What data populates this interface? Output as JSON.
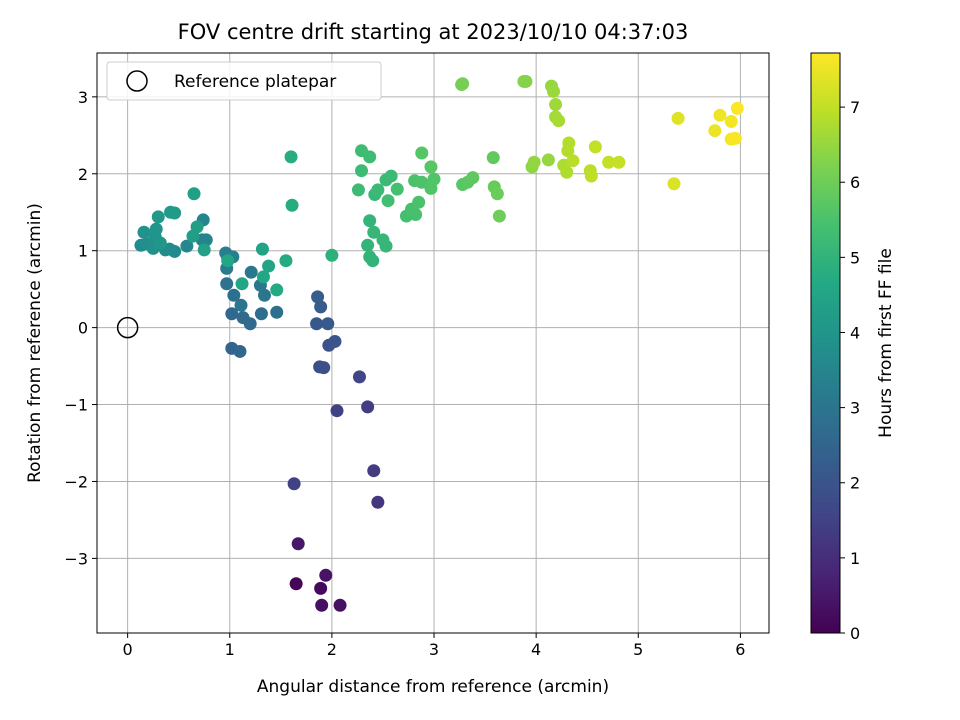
{
  "chart_data": {
    "type": "scatter",
    "title": "FOV centre drift starting at 2023/10/10 04:37:03",
    "xlabel": "Angular distance from reference (arcmin)",
    "ylabel": "Rotation from reference (arcmin)",
    "xlim": [
      -0.3,
      6.28
    ],
    "ylim": [
      -3.97,
      3.57
    ],
    "xticks": [
      0,
      1,
      2,
      3,
      4,
      5,
      6
    ],
    "yticks": [
      -3,
      -2,
      -1,
      0,
      1,
      2,
      3
    ],
    "xtick_labels": [
      "0",
      "1",
      "2",
      "3",
      "4",
      "5",
      "6"
    ],
    "ytick_labels": [
      "−3",
      "−2",
      "−1",
      "0",
      "1",
      "2",
      "3"
    ],
    "grid": true,
    "legend": {
      "placement": "top-left",
      "entries": [
        "Reference platepar"
      ]
    },
    "reference_point": {
      "x": 0,
      "y": 0
    },
    "colorbar": {
      "label": "Hours from first FF file",
      "range": [
        0,
        7.72
      ],
      "ticks": [
        0,
        1,
        2,
        3,
        4,
        5,
        6,
        7
      ],
      "tick_labels": [
        "0",
        "1",
        "2",
        "3",
        "4",
        "5",
        "6",
        "7"
      ],
      "colormap": "viridis"
    },
    "points": [
      {
        "x": 1.65,
        "y": -3.33,
        "h": 0.1
      },
      {
        "x": 1.89,
        "y": -3.39,
        "h": 0.2
      },
      {
        "x": 1.9,
        "y": -3.61,
        "h": 0.3
      },
      {
        "x": 2.08,
        "y": -3.61,
        "h": 0.35
      },
      {
        "x": 1.94,
        "y": -3.22,
        "h": 0.4
      },
      {
        "x": 1.67,
        "y": -2.81,
        "h": 0.5
      },
      {
        "x": 2.45,
        "y": -2.27,
        "h": 1.2
      },
      {
        "x": 2.41,
        "y": -1.86,
        "h": 1.35
      },
      {
        "x": 1.63,
        "y": -2.03,
        "h": 1.5
      },
      {
        "x": 2.35,
        "y": -1.03,
        "h": 1.4
      },
      {
        "x": 2.05,
        "y": -1.08,
        "h": 1.5
      },
      {
        "x": 2.27,
        "y": -0.64,
        "h": 1.6
      },
      {
        "x": 1.88,
        "y": -0.51,
        "h": 1.8
      },
      {
        "x": 1.92,
        "y": -0.52,
        "h": 1.85
      },
      {
        "x": 1.97,
        "y": -0.23,
        "h": 1.95
      },
      {
        "x": 2.03,
        "y": -0.18,
        "h": 2.0
      },
      {
        "x": 1.85,
        "y": 0.05,
        "h": 2.1
      },
      {
        "x": 1.96,
        "y": 0.05,
        "h": 2.15
      },
      {
        "x": 1.89,
        "y": 0.27,
        "h": 2.2
      },
      {
        "x": 1.86,
        "y": 0.4,
        "h": 2.25
      },
      {
        "x": 1.02,
        "y": -0.27,
        "h": 2.5
      },
      {
        "x": 1.1,
        "y": -0.31,
        "h": 2.55
      },
      {
        "x": 1.02,
        "y": 0.18,
        "h": 2.6
      },
      {
        "x": 1.13,
        "y": 0.13,
        "h": 2.65
      },
      {
        "x": 1.2,
        "y": 0.05,
        "h": 2.7
      },
      {
        "x": 1.31,
        "y": 0.18,
        "h": 2.75
      },
      {
        "x": 1.46,
        "y": 0.2,
        "h": 2.8
      },
      {
        "x": 1.04,
        "y": 0.42,
        "h": 2.85
      },
      {
        "x": 0.97,
        "y": 0.57,
        "h": 2.9
      },
      {
        "x": 1.11,
        "y": 0.29,
        "h": 3.0
      },
      {
        "x": 1.34,
        "y": 0.42,
        "h": 3.0
      },
      {
        "x": 1.3,
        "y": 0.55,
        "h": 3.05
      },
      {
        "x": 1.21,
        "y": 0.72,
        "h": 3.1
      },
      {
        "x": 0.97,
        "y": 0.77,
        "h": 3.2
      },
      {
        "x": 0.96,
        "y": 0.97,
        "h": 3.25
      },
      {
        "x": 1.03,
        "y": 0.92,
        "h": 3.3
      },
      {
        "x": 0.98,
        "y": 0.9,
        "h": 3.35
      },
      {
        "x": 0.73,
        "y": 1.14,
        "h": 3.4
      },
      {
        "x": 0.77,
        "y": 1.14,
        "h": 3.45
      },
      {
        "x": 0.74,
        "y": 1.4,
        "h": 3.5
      },
      {
        "x": 0.58,
        "y": 1.06,
        "h": 3.55
      },
      {
        "x": 0.46,
        "y": 0.99,
        "h": 3.6
      },
      {
        "x": 0.41,
        "y": 1.02,
        "h": 3.65
      },
      {
        "x": 0.37,
        "y": 1.01,
        "h": 3.7
      },
      {
        "x": 0.13,
        "y": 1.07,
        "h": 3.75
      },
      {
        "x": 0.19,
        "y": 1.09,
        "h": 3.8
      },
      {
        "x": 0.25,
        "y": 1.03,
        "h": 3.85
      },
      {
        "x": 0.16,
        "y": 1.24,
        "h": 3.9
      },
      {
        "x": 0.27,
        "y": 1.18,
        "h": 3.95
      },
      {
        "x": 0.28,
        "y": 1.28,
        "h": 4.0
      },
      {
        "x": 0.32,
        "y": 1.1,
        "h": 4.05
      },
      {
        "x": 0.3,
        "y": 1.44,
        "h": 4.1
      },
      {
        "x": 0.42,
        "y": 1.5,
        "h": 4.15
      },
      {
        "x": 0.46,
        "y": 1.49,
        "h": 4.2
      },
      {
        "x": 0.64,
        "y": 1.19,
        "h": 4.25
      },
      {
        "x": 0.68,
        "y": 1.31,
        "h": 4.3
      },
      {
        "x": 0.65,
        "y": 1.74,
        "h": 4.35
      },
      {
        "x": 0.75,
        "y": 1.01,
        "h": 4.4
      },
      {
        "x": 1.32,
        "y": 1.02,
        "h": 4.45
      },
      {
        "x": 1.38,
        "y": 0.8,
        "h": 4.5
      },
      {
        "x": 1.33,
        "y": 0.66,
        "h": 4.55
      },
      {
        "x": 1.12,
        "y": 0.57,
        "h": 4.55
      },
      {
        "x": 0.98,
        "y": 0.87,
        "h": 4.6
      },
      {
        "x": 1.46,
        "y": 0.49,
        "h": 4.65
      },
      {
        "x": 1.55,
        "y": 0.87,
        "h": 4.7
      },
      {
        "x": 1.61,
        "y": 1.59,
        "h": 4.75
      },
      {
        "x": 1.6,
        "y": 2.22,
        "h": 4.8
      },
      {
        "x": 2.0,
        "y": 0.94,
        "h": 4.9
      },
      {
        "x": 2.4,
        "y": 0.87,
        "h": 5.0
      },
      {
        "x": 2.37,
        "y": 0.92,
        "h": 5.0
      },
      {
        "x": 2.35,
        "y": 1.07,
        "h": 5.05
      },
      {
        "x": 2.37,
        "y": 1.39,
        "h": 5.05
      },
      {
        "x": 2.41,
        "y": 1.24,
        "h": 5.1
      },
      {
        "x": 2.5,
        "y": 1.14,
        "h": 5.1
      },
      {
        "x": 2.53,
        "y": 1.06,
        "h": 5.1
      },
      {
        "x": 2.42,
        "y": 1.73,
        "h": 5.15
      },
      {
        "x": 2.45,
        "y": 1.79,
        "h": 5.2
      },
      {
        "x": 2.53,
        "y": 1.92,
        "h": 5.2
      },
      {
        "x": 2.58,
        "y": 1.97,
        "h": 5.2
      },
      {
        "x": 2.26,
        "y": 1.79,
        "h": 5.25
      },
      {
        "x": 2.29,
        "y": 2.04,
        "h": 5.25
      },
      {
        "x": 2.29,
        "y": 2.3,
        "h": 5.3
      },
      {
        "x": 2.37,
        "y": 2.22,
        "h": 5.3
      },
      {
        "x": 2.55,
        "y": 1.65,
        "h": 5.35
      },
      {
        "x": 2.64,
        "y": 1.8,
        "h": 5.4
      },
      {
        "x": 2.73,
        "y": 1.45,
        "h": 5.4
      },
      {
        "x": 2.78,
        "y": 1.54,
        "h": 5.45
      },
      {
        "x": 2.82,
        "y": 1.47,
        "h": 5.45
      },
      {
        "x": 2.85,
        "y": 1.63,
        "h": 5.5
      },
      {
        "x": 2.81,
        "y": 1.91,
        "h": 5.5
      },
      {
        "x": 2.88,
        "y": 1.89,
        "h": 5.55
      },
      {
        "x": 2.97,
        "y": 1.81,
        "h": 5.6
      },
      {
        "x": 3.0,
        "y": 1.93,
        "h": 5.6
      },
      {
        "x": 2.88,
        "y": 2.27,
        "h": 5.65
      },
      {
        "x": 2.97,
        "y": 2.09,
        "h": 5.7
      },
      {
        "x": 3.28,
        "y": 1.86,
        "h": 5.7
      },
      {
        "x": 3.33,
        "y": 1.89,
        "h": 5.75
      },
      {
        "x": 3.38,
        "y": 1.95,
        "h": 5.8
      },
      {
        "x": 3.58,
        "y": 2.21,
        "h": 5.85
      },
      {
        "x": 3.59,
        "y": 1.83,
        "h": 5.9
      },
      {
        "x": 3.62,
        "y": 1.74,
        "h": 5.95
      },
      {
        "x": 3.64,
        "y": 1.45,
        "h": 6.0
      },
      {
        "x": 3.28,
        "y": 3.17,
        "h": 6.1
      },
      {
        "x": 3.27,
        "y": 3.16,
        "h": 6.1
      },
      {
        "x": 3.88,
        "y": 3.2,
        "h": 6.3
      },
      {
        "x": 3.9,
        "y": 3.2,
        "h": 6.3
      },
      {
        "x": 3.96,
        "y": 2.09,
        "h": 6.4
      },
      {
        "x": 3.98,
        "y": 2.15,
        "h": 6.45
      },
      {
        "x": 4.12,
        "y": 2.18,
        "h": 6.5
      },
      {
        "x": 4.15,
        "y": 3.14,
        "h": 6.5
      },
      {
        "x": 4.17,
        "y": 3.07,
        "h": 6.55
      },
      {
        "x": 4.19,
        "y": 2.9,
        "h": 6.6
      },
      {
        "x": 4.19,
        "y": 2.74,
        "h": 6.65
      },
      {
        "x": 4.22,
        "y": 2.69,
        "h": 6.7
      },
      {
        "x": 4.27,
        "y": 2.11,
        "h": 6.75
      },
      {
        "x": 4.3,
        "y": 2.02,
        "h": 6.8
      },
      {
        "x": 4.31,
        "y": 2.3,
        "h": 6.85
      },
      {
        "x": 4.32,
        "y": 2.4,
        "h": 6.85
      },
      {
        "x": 4.36,
        "y": 2.17,
        "h": 6.9
      },
      {
        "x": 4.53,
        "y": 2.04,
        "h": 6.9
      },
      {
        "x": 4.54,
        "y": 1.97,
        "h": 6.95
      },
      {
        "x": 4.58,
        "y": 2.35,
        "h": 7.0
      },
      {
        "x": 4.71,
        "y": 2.15,
        "h": 7.0
      },
      {
        "x": 4.81,
        "y": 2.15,
        "h": 7.05
      },
      {
        "x": 5.35,
        "y": 1.87,
        "h": 7.3
      },
      {
        "x": 5.39,
        "y": 2.72,
        "h": 7.35
      },
      {
        "x": 5.75,
        "y": 2.56,
        "h": 7.5
      },
      {
        "x": 5.8,
        "y": 2.76,
        "h": 7.55
      },
      {
        "x": 5.91,
        "y": 2.68,
        "h": 7.6
      },
      {
        "x": 5.91,
        "y": 2.45,
        "h": 7.62
      },
      {
        "x": 5.95,
        "y": 2.46,
        "h": 7.65
      },
      {
        "x": 5.97,
        "y": 2.85,
        "h": 7.7
      }
    ]
  }
}
